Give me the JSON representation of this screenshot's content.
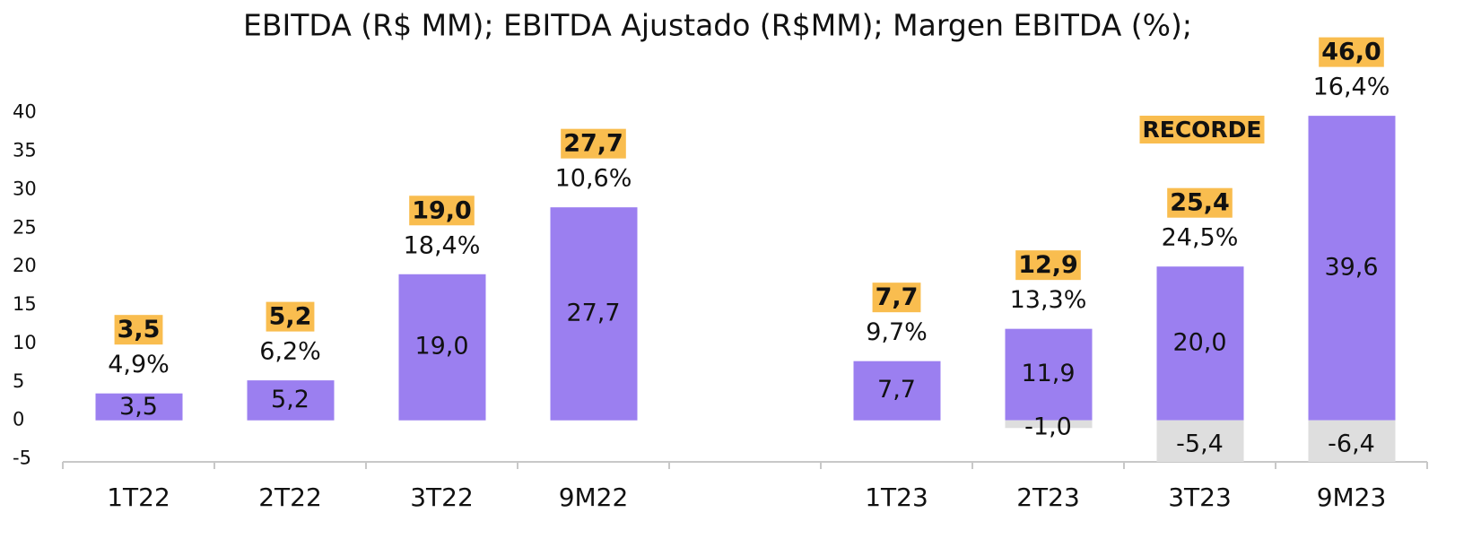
{
  "chart_data": {
    "type": "bar",
    "title": "EBITDA (R$ MM); EBITDA Ajustado (R$MM); Margen EBITDA (%);",
    "annotation": "RECORDE",
    "categories": [
      "1T22",
      "2T22",
      "3T22",
      "9M22",
      null,
      "1T23",
      "2T23",
      "3T23",
      "9M23"
    ],
    "series": [
      {
        "color": "#9b7ff0",
        "values": [
          3.5,
          5.2,
          19.0,
          27.7,
          null,
          7.7,
          11.9,
          20.0,
          39.6
        ],
        "value_labels": [
          "3,5",
          "5,2",
          "19,0",
          "27,7",
          null,
          "7,7",
          "11,9",
          "20,0",
          "39,6"
        ]
      },
      {
        "color": "#dedede",
        "values": [
          null,
          null,
          null,
          null,
          null,
          null,
          -1.0,
          -5.4,
          -6.4
        ],
        "value_labels": [
          null,
          null,
          null,
          null,
          null,
          null,
          "-1,0",
          "-5,4",
          "-6,4"
        ]
      }
    ],
    "adjusted": {
      "color": "#f9bd4f",
      "values": [
        3.5,
        5.2,
        19.0,
        27.7,
        null,
        7.7,
        12.9,
        25.4,
        46.0
      ],
      "value_labels": [
        "3,5",
        "5,2",
        "19,0",
        "27,7",
        null,
        "7,7",
        "12,9",
        "25,4",
        "46,0"
      ]
    },
    "margin": {
      "values": [
        4.9,
        6.2,
        18.4,
        10.6,
        null,
        9.7,
        13.3,
        24.5,
        16.4
      ],
      "value_labels": [
        "4,9%",
        "6,2%",
        "18,4%",
        "10,6%",
        null,
        "9,7%",
        "13,3%",
        "24,5%",
        "16,4%"
      ]
    },
    "ylim": [
      -5.4,
      45
    ],
    "yticks": [
      -5,
      0,
      5,
      10,
      15,
      20,
      25,
      30,
      35,
      40
    ],
    "grid": false
  }
}
